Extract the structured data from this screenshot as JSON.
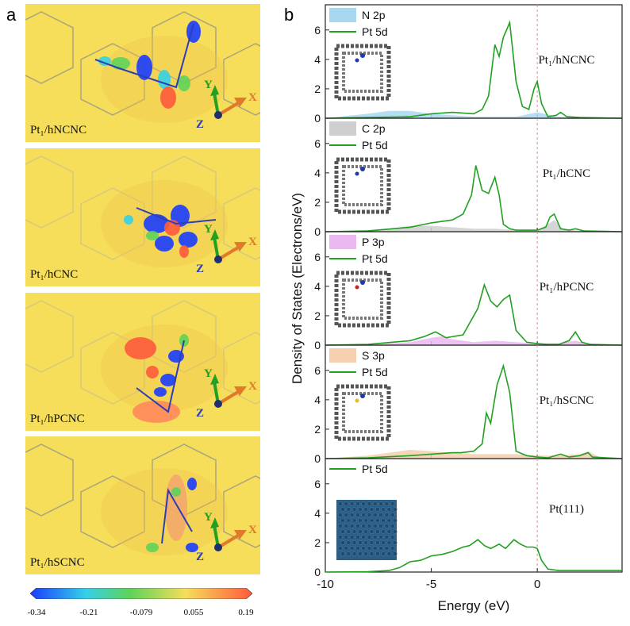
{
  "panel_a": {
    "letter": "a",
    "maps": [
      {
        "label": "Pt₁/hNCNC"
      },
      {
        "label": "Pt₁/hCNC"
      },
      {
        "label": "Pt₁/hPCNC"
      },
      {
        "label": "Pt₁/hSCNC"
      }
    ],
    "axes": {
      "x": "X",
      "y": "Y",
      "z": "Z"
    },
    "colorbar": {
      "ticks": [
        "-0.34",
        "-0.21",
        "-0.079",
        "0.055",
        "0.19"
      ],
      "colors": [
        "#1a3cff",
        "#35d0e8",
        "#5ed35a",
        "#f6dd5a",
        "#ff5a3c"
      ]
    }
  },
  "panel_b": {
    "letter": "b",
    "ylabel": "Density of States (Electrons/eV)",
    "xlabel": "Energy (eV)",
    "x_ticks": [
      "-10",
      "-5",
      "0"
    ],
    "y_ticks": [
      "0",
      "2",
      "4",
      "6"
    ]
  },
  "chart_data": {
    "type": "area",
    "xlabel": "Energy (eV)",
    "ylabel": "Density of States (Electrons/eV)",
    "xlim": [
      -10,
      4
    ],
    "ylim": [
      0,
      7.5
    ],
    "fermi_level": 0,
    "subplots": [
      {
        "title": "Pt₁/hNCNC",
        "legend": [
          "N 2p",
          "Pt 5d"
        ],
        "series": [
          {
            "name": "Pt 5d",
            "color": "#22a022",
            "style": "line",
            "x": [
              -10,
              -8,
              -6,
              -5,
              -4,
              -3,
              -2.6,
              -2.3,
              -2.0,
              -1.8,
              -1.6,
              -1.3,
              -1.0,
              -0.7,
              -0.4,
              -0.15,
              0,
              0.2,
              0.5,
              0.9,
              1.1,
              1.4,
              2,
              3,
              4
            ],
            "y": [
              0,
              0.05,
              0.1,
              0.3,
              0.4,
              0.3,
              0.6,
              1.5,
              5.0,
              4.2,
              5.5,
              6.5,
              2.5,
              0.8,
              0.6,
              2.0,
              2.5,
              1.0,
              0.1,
              0.2,
              0.4,
              0.1,
              0.05,
              0.02,
              0
            ]
          },
          {
            "name": "N 2p",
            "color": "#a8d8f0",
            "style": "fill",
            "x": [
              -10,
              -8,
              -7,
              -6,
              -5,
              -4,
              -3,
              -2,
              -1,
              0,
              1,
              2,
              4
            ],
            "y": [
              0,
              0.3,
              0.5,
              0.5,
              0.3,
              0.2,
              0.1,
              0.1,
              0.1,
              0.4,
              0.1,
              0.05,
              0
            ]
          }
        ]
      },
      {
        "title": "Pt₁/hCNC",
        "legend": [
          "C 2p",
          "Pt 5d"
        ],
        "series": [
          {
            "name": "Pt 5d",
            "color": "#22a022",
            "style": "line",
            "x": [
              -10,
              -8,
              -6,
              -5,
              -4,
              -3.5,
              -3.1,
              -2.9,
              -2.6,
              -2.3,
              -2.0,
              -1.8,
              -1.6,
              -1.3,
              -1.0,
              0,
              0.4,
              0.6,
              0.8,
              1.1,
              1.5,
              1.8,
              2.2,
              4
            ],
            "y": [
              0,
              0.05,
              0.3,
              0.6,
              0.8,
              1.2,
              2.5,
              4.5,
              2.8,
              2.6,
              3.7,
              2.5,
              0.5,
              0.2,
              0.1,
              0.1,
              0.3,
              1.0,
              1.2,
              0.2,
              0.1,
              0.2,
              0.05,
              0
            ]
          },
          {
            "name": "C 2p",
            "color": "#cfcfcf",
            "style": "fill",
            "x": [
              -10,
              -8,
              -7,
              -6,
              -5,
              -4,
              -3,
              -2,
              -1,
              0,
              0.6,
              0.8,
              1.2,
              2,
              4
            ],
            "y": [
              0,
              0.1,
              0.2,
              0.4,
              0.4,
              0.3,
              0.2,
              0.2,
              0.1,
              0.1,
              0.6,
              0.8,
              0.2,
              0.05,
              0
            ]
          }
        ]
      },
      {
        "title": "Pt₁/hPCNC",
        "legend": [
          "P 3p",
          "Pt 5d"
        ],
        "series": [
          {
            "name": "Pt 5d",
            "color": "#22a022",
            "style": "line",
            "x": [
              -10,
              -8,
              -6,
              -5.3,
              -4.8,
              -4.3,
              -3.5,
              -2.8,
              -2.5,
              -2.2,
              -1.9,
              -1.6,
              -1.3,
              -1.0,
              -0.5,
              0,
              0.5,
              1,
              1.5,
              1.8,
              2.1,
              2.5,
              4
            ],
            "y": [
              0,
              0.05,
              0.3,
              0.6,
              0.9,
              0.5,
              0.7,
              2.5,
              4.1,
              3.0,
              2.6,
              3.1,
              3.4,
              1.0,
              0.2,
              0.1,
              0.05,
              0.05,
              0.3,
              0.9,
              0.2,
              0.05,
              0
            ]
          },
          {
            "name": "P 3p",
            "color": "#eab7ee",
            "style": "fill",
            "x": [
              -10,
              -8,
              -6,
              -5,
              -4.5,
              -4,
              -3,
              -2,
              -1,
              0,
              1,
              1.8,
              2.5,
              4
            ],
            "y": [
              0,
              0.05,
              0.2,
              0.5,
              0.6,
              0.4,
              0.2,
              0.3,
              0.2,
              0.1,
              0.1,
              0.3,
              0.05,
              0
            ]
          }
        ]
      },
      {
        "title": "Pt₁/hSCNC",
        "legend": [
          "S 3p",
          "Pt 5d"
        ],
        "series": [
          {
            "name": "Pt 5d",
            "color": "#22a022",
            "style": "line",
            "x": [
              -10,
              -8,
              -6,
              -5,
              -4,
              -3.6,
              -3.0,
              -2.6,
              -2.4,
              -2.2,
              -1.9,
              -1.6,
              -1.3,
              -1.0,
              -0.5,
              0,
              0.5,
              1.1,
              1.5,
              2.0,
              2.4,
              2.6,
              4
            ],
            "y": [
              0,
              0.05,
              0.2,
              0.3,
              0.4,
              0.4,
              0.5,
              1.0,
              3.1,
              2.4,
              5.0,
              6.3,
              4.5,
              0.5,
              0.2,
              0.1,
              0.05,
              0.3,
              0.1,
              0.2,
              0.4,
              0.1,
              0
            ]
          },
          {
            "name": "S 3p",
            "color": "#f5cfae",
            "style": "fill",
            "x": [
              -10,
              -8,
              -7,
              -6,
              -5,
              -4,
              -3,
              -2,
              -1,
              0,
              1,
              2,
              2.4,
              3,
              4
            ],
            "y": [
              0,
              0.2,
              0.4,
              0.6,
              0.5,
              0.4,
              0.3,
              0.3,
              0.3,
              0.2,
              0.2,
              0.3,
              0.5,
              0.05,
              0
            ]
          }
        ]
      },
      {
        "title": "Pt(111)",
        "legend": [
          "Pt 5d"
        ],
        "series": [
          {
            "name": "Pt 5d",
            "color": "#22a022",
            "style": "line",
            "x": [
              -10,
              -8,
              -7,
              -6.5,
              -6,
              -5.5,
              -5,
              -4.5,
              -4,
              -3.5,
              -3.2,
              -2.8,
              -2.5,
              -2.2,
              -1.8,
              -1.5,
              -1.1,
              -0.8,
              -0.5,
              -0.2,
              0,
              0.2,
              0.5,
              1,
              2,
              4
            ],
            "y": [
              0,
              0.02,
              0.1,
              0.3,
              0.7,
              0.8,
              1.1,
              1.2,
              1.4,
              1.7,
              1.8,
              2.2,
              1.8,
              1.6,
              1.9,
              1.6,
              2.2,
              1.9,
              1.7,
              1.7,
              1.6,
              0.8,
              0.2,
              0.1,
              0.1,
              0.1
            ]
          }
        ]
      }
    ]
  }
}
